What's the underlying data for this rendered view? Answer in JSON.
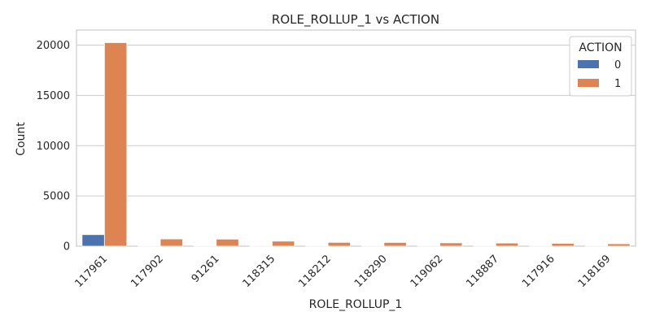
{
  "chart_data": {
    "type": "bar",
    "title": "ROLE_ROLLUP_1 vs ACTION",
    "xlabel": "ROLE_ROLLUP_1",
    "ylabel": "Count",
    "categories": [
      "117961",
      "117902",
      "91261",
      "118315",
      "118212",
      "118290",
      "119062",
      "118887",
      "117916",
      "118169"
    ],
    "series": [
      {
        "name": "0",
        "values": [
          1150,
          40,
          30,
          25,
          20,
          20,
          15,
          15,
          15,
          10
        ],
        "color": "#4c72b0"
      },
      {
        "name": "1",
        "values": [
          20250,
          720,
          700,
          500,
          380,
          370,
          330,
          310,
          280,
          240
        ],
        "color": "#dd8452"
      }
    ],
    "ylim": [
      0,
      21500
    ],
    "yticks": [
      0,
      5000,
      10000,
      15000,
      20000
    ],
    "ytick_labels": [
      "0",
      "5000",
      "10000",
      "15000",
      "20000"
    ],
    "grid": true,
    "legend": {
      "title": "ACTION",
      "placement": "top-right"
    }
  }
}
